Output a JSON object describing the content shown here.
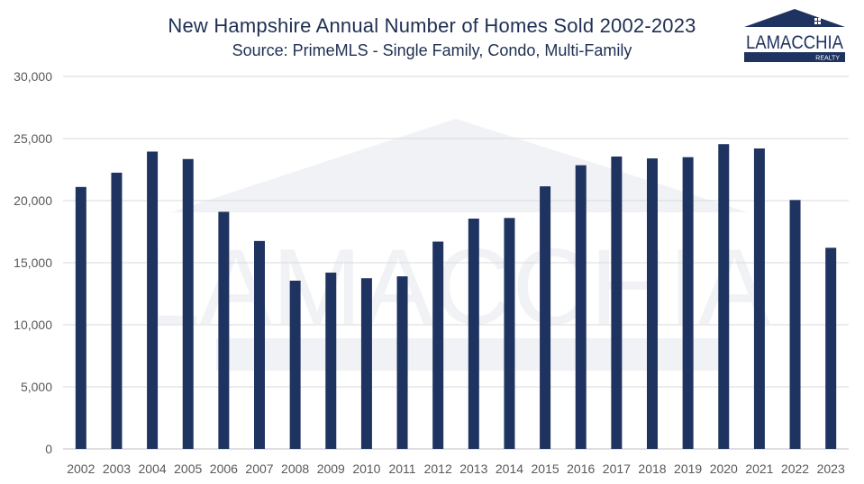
{
  "header": {
    "title": "New Hampshire Annual Number of Homes Sold 2002-2023",
    "subtitle": "Source: PrimeMLS - Single Family, Condo, Multi-Family"
  },
  "logo": {
    "name": "LAMACCHIA",
    "sub": "REALTY"
  },
  "colors": {
    "bar": "#1f3360",
    "grid": "#d9d9d9",
    "axis_text": "#595959",
    "title": "#1f2f52"
  },
  "chart_data": {
    "type": "bar",
    "title": "New Hampshire Annual Number of Homes Sold 2002-2023",
    "subtitle": "Source: PrimeMLS - Single Family, Condo, Multi-Family",
    "xlabel": "",
    "ylabel": "",
    "ylim": [
      0,
      30000
    ],
    "yticks": [
      0,
      5000,
      10000,
      15000,
      20000,
      25000,
      30000
    ],
    "ytick_labels": [
      "0",
      "5,000",
      "10,000",
      "15,000",
      "20,000",
      "25,000",
      "30,000"
    ],
    "grid": true,
    "legend": "none",
    "categories": [
      "2002",
      "2003",
      "2004",
      "2005",
      "2006",
      "2007",
      "2008",
      "2009",
      "2010",
      "2011",
      "2012",
      "2013",
      "2014",
      "2015",
      "2016",
      "2017",
      "2018",
      "2019",
      "2020",
      "2021",
      "2022",
      "2023"
    ],
    "values": [
      21100,
      22250,
      23950,
      23350,
      19100,
      16750,
      13550,
      14200,
      13750,
      13900,
      16700,
      18550,
      18600,
      21150,
      22850,
      23550,
      23400,
      23500,
      24550,
      24200,
      20050,
      16200
    ]
  }
}
